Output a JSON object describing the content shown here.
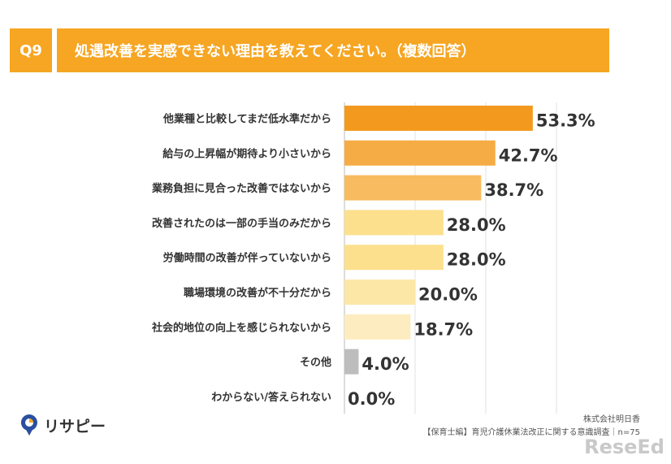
{
  "header": {
    "question_no": "Q9",
    "question": "処遇改善を実感できない理由を教えてください。（複数回答）"
  },
  "chart_data": {
    "type": "bar",
    "orientation": "horizontal",
    "unit": "%",
    "categories": [
      "他業種と比較してまだ低水準だから",
      "給与の上昇幅が期待より小さいから",
      "業務負担に見合った改善ではないから",
      "改善されたのは一部の手当のみだから",
      "労働時間の改善が伴っていないから",
      "職場環境の改善が不十分だから",
      "社会的地位の向上を感じられないから",
      "その他",
      "わからない/答えられない"
    ],
    "values": [
      53.3,
      42.7,
      38.7,
      28.0,
      28.0,
      20.0,
      18.7,
      4.0,
      0.0
    ],
    "value_labels": [
      "53.3%",
      "42.7%",
      "38.7%",
      "28.0%",
      "28.0%",
      "20.0%",
      "18.7%",
      "4.0%",
      "0.0%"
    ],
    "colors": [
      "#f39a1e",
      "#f6ac45",
      "#f8bb5f",
      "#fde08d",
      "#fde08d",
      "#fde7a6",
      "#fdecc0",
      "#bdbdbd",
      "#bdbdbd"
    ],
    "xlim": [
      0,
      100
    ],
    "grid": true
  },
  "footer": {
    "brand": "リサピー",
    "company": "株式会社明日香",
    "survey": "【保育士編】育児介護休業法改正に関する意識調査｜n=75",
    "watermark": "ReseEd"
  }
}
